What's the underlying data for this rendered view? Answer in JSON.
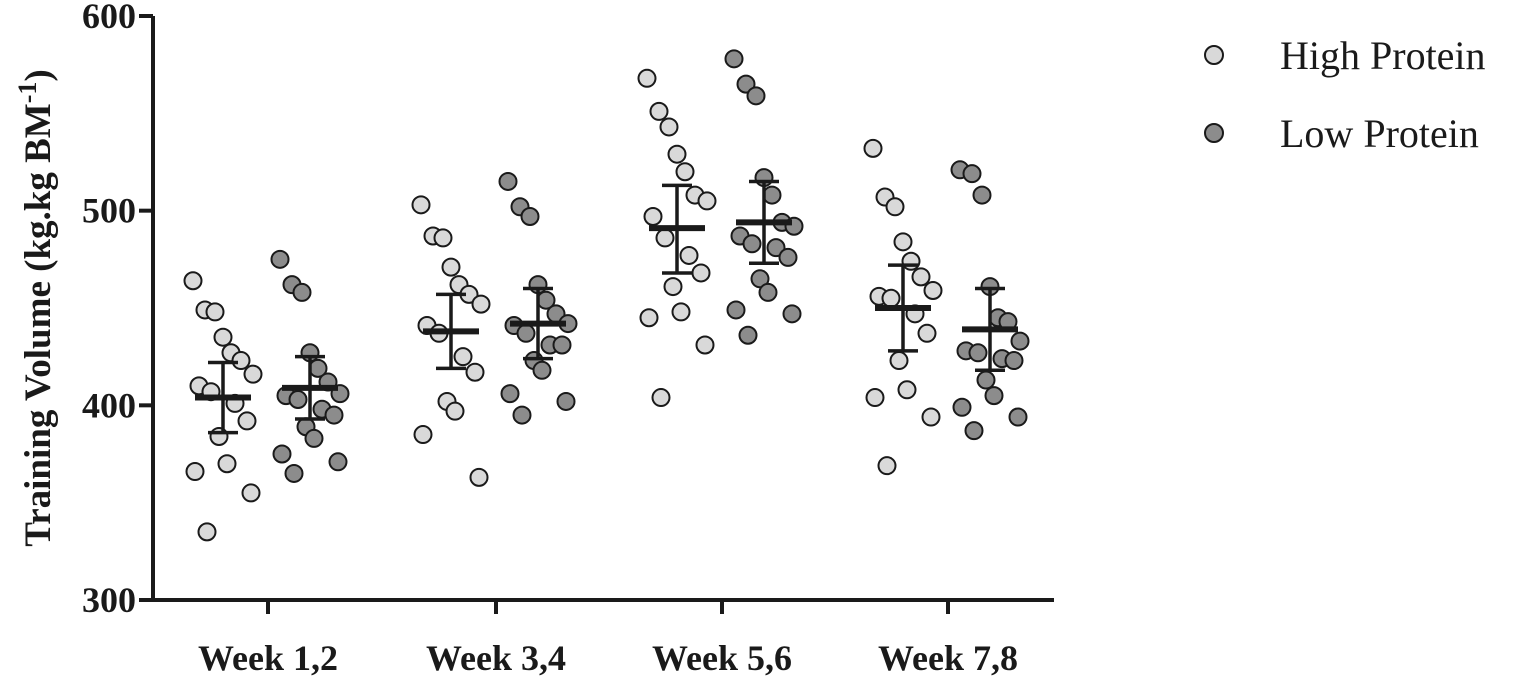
{
  "chart_data": {
    "type": "scatter",
    "subtype": "dot plot with mean and error bars",
    "title": "",
    "ylabel": "Training Volume (kg.kg BM",
    "ylabel_superscript": "-1",
    "ylabel_close": ")",
    "xlabel": "",
    "ylim": [
      300,
      600
    ],
    "yticks": [
      300,
      400,
      500,
      600
    ],
    "ytick_labels": [
      "300",
      "400",
      "500",
      "600"
    ],
    "categories": [
      "Week 1,2",
      "Week 3,4",
      "Week 5,6",
      "Week 7,8"
    ],
    "legend_position": "top-right",
    "grid": false,
    "series": [
      {
        "name": "High Protein",
        "color": "#d9d9d9",
        "points": [
          [
            464,
            449,
            448,
            435,
            427,
            423,
            416,
            410,
            407,
            401,
            392,
            384,
            370,
            366,
            355,
            335
          ],
          [
            503,
            487,
            486,
            471,
            462,
            457,
            452,
            441,
            437,
            425,
            417,
            402,
            397,
            385,
            363
          ],
          [
            568,
            551,
            543,
            529,
            520,
            508,
            505,
            497,
            486,
            477,
            468,
            461,
            448,
            445,
            431,
            404
          ],
          [
            532,
            507,
            502,
            484,
            474,
            466,
            459,
            456,
            455,
            447,
            437,
            423,
            408,
            404,
            394,
            369
          ]
        ],
        "mean": [
          404,
          438,
          491,
          450
        ],
        "error_upper": [
          422,
          457,
          513,
          472
        ],
        "error_lower": [
          386,
          419,
          468,
          428
        ]
      },
      {
        "name": "Low Protein",
        "color": "#8c8c8c",
        "points": [
          [
            475,
            462,
            458,
            427,
            419,
            412,
            406,
            405,
            403,
            398,
            395,
            389,
            383,
            375,
            371,
            365
          ],
          [
            515,
            502,
            497,
            462,
            454,
            447,
            442,
            441,
            437,
            431,
            431,
            423,
            418,
            406,
            402,
            395
          ],
          [
            578,
            565,
            559,
            517,
            508,
            494,
            492,
            487,
            483,
            481,
            476,
            465,
            458,
            449,
            447,
            436
          ],
          [
            521,
            519,
            508,
            461,
            445,
            443,
            433,
            428,
            427,
            424,
            423,
            413,
            405,
            399,
            394,
            387
          ]
        ],
        "mean": [
          409,
          442,
          494,
          439
        ],
        "error_upper": [
          425,
          460,
          515,
          460
        ],
        "error_lower": [
          393,
          424,
          473,
          418
        ]
      }
    ]
  }
}
